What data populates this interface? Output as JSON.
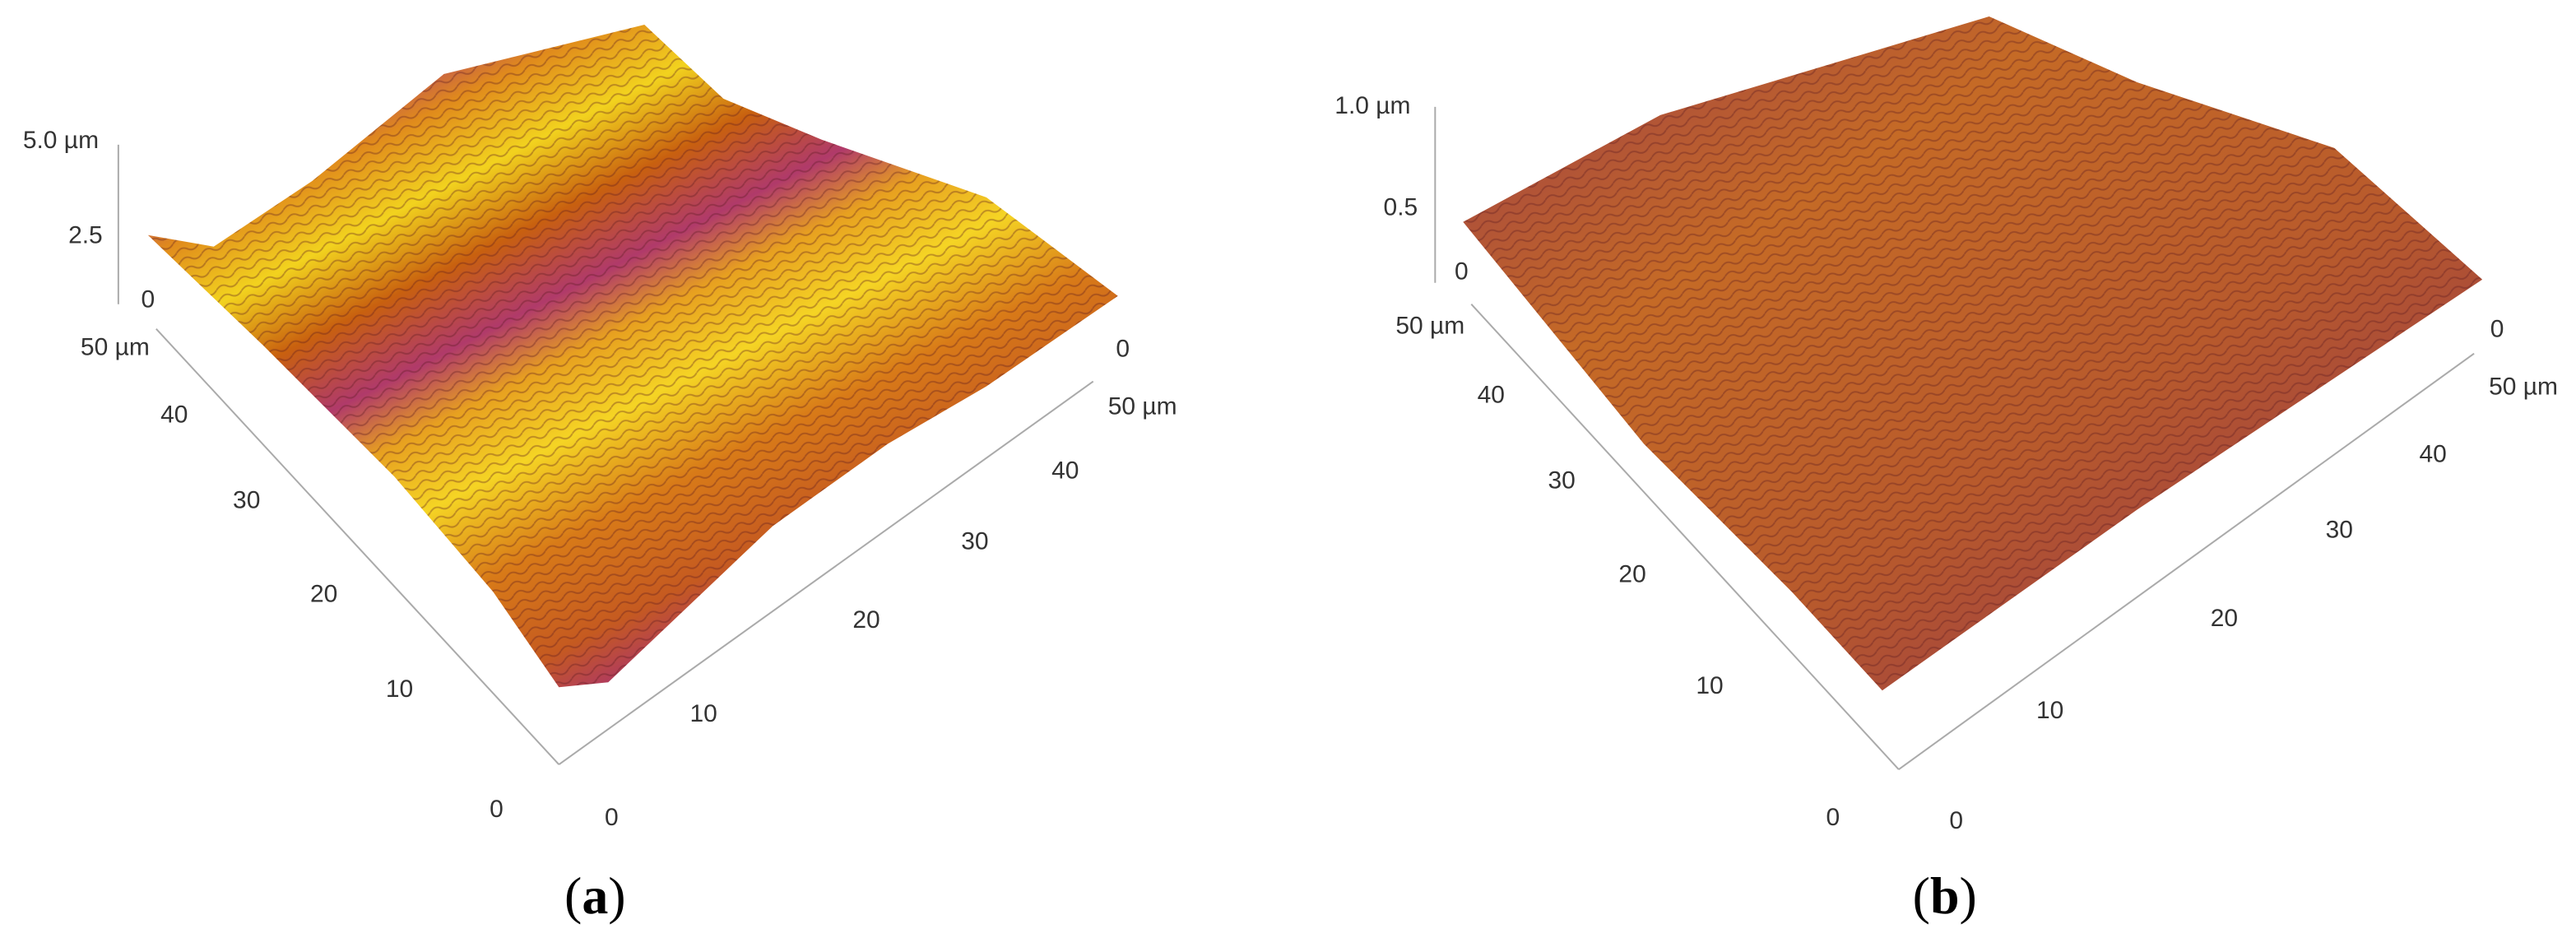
{
  "panels": [
    {
      "z_ticks": [
        "5.0 µm",
        "2.5",
        "0"
      ],
      "left_ticks": [
        "50 µm",
        "40",
        "30",
        "20",
        "10",
        "0"
      ],
      "right_ticks": [
        "0",
        "10",
        "20",
        "30",
        "40",
        "50 µm"
      ],
      "back_tick": "0",
      "caption": {
        "open": "(",
        "letter": "a",
        "close": ")"
      }
    },
    {
      "z_ticks": [
        "1.0 µm",
        "0.5",
        "0"
      ],
      "left_ticks": [
        "50 µm",
        "40",
        "30",
        "20",
        "10",
        "0"
      ],
      "right_ticks": [
        "0",
        "10",
        "20",
        "30",
        "40",
        "50 µm"
      ],
      "back_tick": "0",
      "caption": {
        "open": "(",
        "letter": "b",
        "close": ")"
      }
    }
  ]
}
